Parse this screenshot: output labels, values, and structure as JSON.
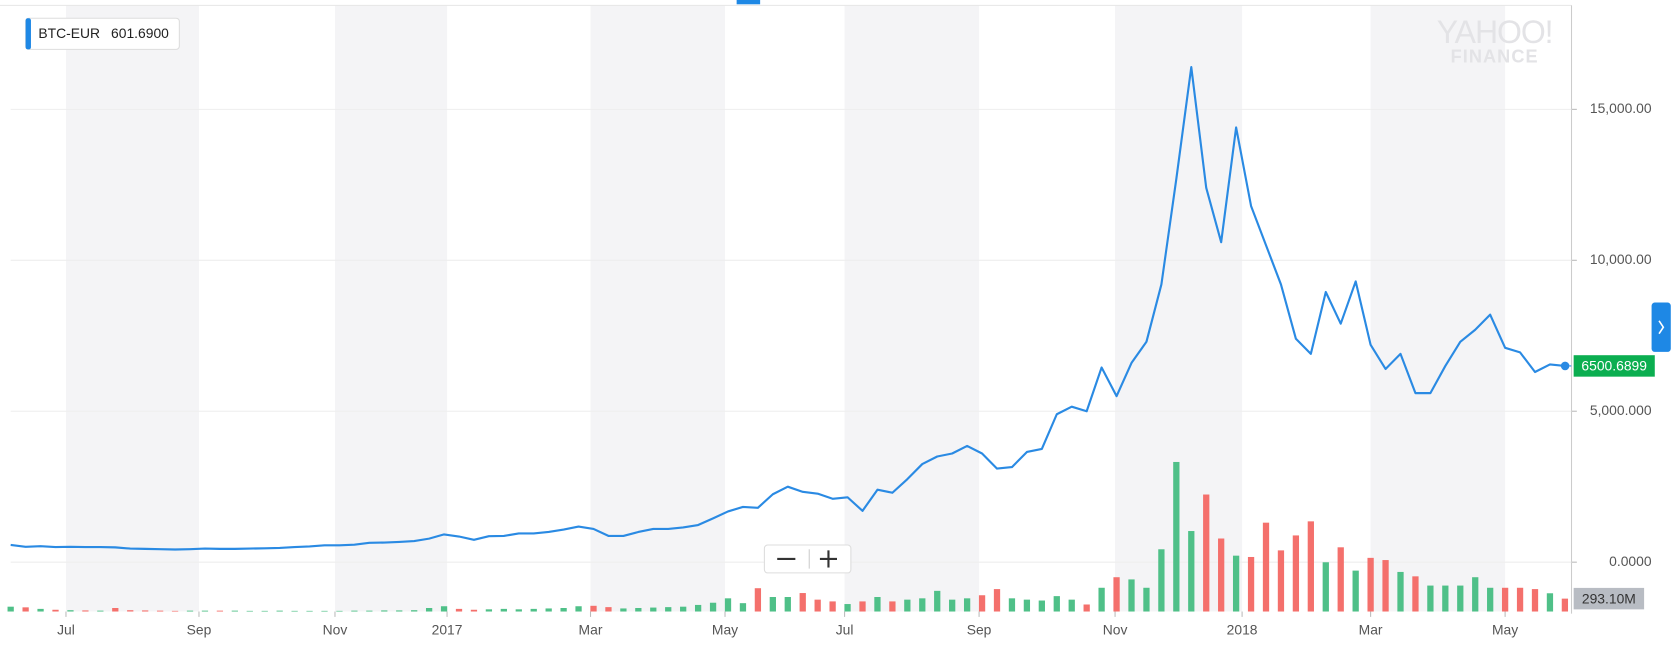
{
  "chart_data": {
    "type": "line",
    "watermark": [
      "YAHOO!",
      "FINANCE"
    ],
    "series": [
      {
        "name": "BTC-EUR",
        "color": "#2a8ae3",
        "values": [
          570,
          510,
          530,
          500,
          510,
          500,
          500,
          490,
          450,
          440,
          430,
          420,
          430,
          450,
          440,
          440,
          450,
          460,
          470,
          500,
          520,
          560,
          560,
          580,
          640,
          650,
          670,
          700,
          780,
          920,
          850,
          740,
          860,
          870,
          950,
          950,
          1000,
          1080,
          1180,
          1100,
          870,
          870,
          1000,
          1100,
          1100,
          1150,
          1230,
          1450,
          1680,
          1830,
          1800,
          2250,
          2500,
          2330,
          2270,
          2100,
          2150,
          1700,
          2400,
          2300,
          2750,
          3250,
          3500,
          3600,
          3850,
          3600,
          3100,
          3150,
          3650,
          3750,
          4900,
          5150,
          5000,
          6450,
          5500,
          6600,
          7300,
          9200,
          12700,
          16400,
          12400,
          10600,
          14400,
          11800,
          10500,
          9200,
          7400,
          6900,
          8950,
          7900,
          9300,
          7200,
          6400,
          6900,
          5600,
          5600,
          6500,
          7300,
          7700,
          8200,
          7100,
          6950,
          6300,
          6550,
          6500.6899
        ]
      }
    ],
    "hover_value": {
      "value": 601.69,
      "label": "601.6900"
    },
    "volume": {
      "up_color": "#4fc088",
      "down_color": "#f4706c",
      "values": [
        110,
        95,
        60,
        40,
        30,
        25,
        20,
        80,
        30,
        25,
        20,
        15,
        20,
        20,
        20,
        20,
        15,
        15,
        20,
        15,
        15,
        15,
        15,
        20,
        20,
        25,
        25,
        30,
        80,
        120,
        60,
        40,
        50,
        60,
        50,
        60,
        70,
        80,
        120,
        130,
        100,
        70,
        80,
        90,
        100,
        110,
        150,
        200,
        300,
        190,
        530,
        330,
        330,
        420,
        270,
        230,
        170,
        230,
        330,
        230,
        270,
        300,
        470,
        270,
        300,
        370,
        510,
        300,
        270,
        250,
        350,
        270,
        160,
        540,
        780,
        730,
        540,
        1415,
        3400,
        1830,
        2660,
        1660,
        1270,
        1240,
        2020,
        1390,
        1730,
        2050,
        1120,
        1460,
        930,
        1220,
        1170,
        900,
        800,
        590,
        590,
        590,
        780,
        540,
        540,
        540,
        510,
        415,
        293.1
      ],
      "last_label": "293.10M",
      "vlim": [
        0,
        6000
      ]
    },
    "xlim": [
      0,
      104.3
    ],
    "xticks": [
      {
        "value": 3.7,
        "label": "Jul"
      },
      {
        "value": 12.6,
        "label": "Sep"
      },
      {
        "value": 21.7,
        "label": "Nov"
      },
      {
        "value": 29.2,
        "label": "2017"
      },
      {
        "value": 38.8,
        "label": "Mar"
      },
      {
        "value": 47.8,
        "label": "May"
      },
      {
        "value": 55.8,
        "label": "Jul"
      },
      {
        "value": 64.8,
        "label": "Sep"
      },
      {
        "value": 73.9,
        "label": "Nov"
      },
      {
        "value": 82.4,
        "label": "2018"
      },
      {
        "value": 91.0,
        "label": "Mar"
      },
      {
        "value": 100.0,
        "label": "May"
      }
    ],
    "ylim": [
      -1635,
      18445
    ],
    "yticks": [
      {
        "value": 0,
        "label": "0.0000"
      },
      {
        "value": 5000,
        "label": "5,000.000"
      },
      {
        "value": 10000,
        "label": "10,000.00"
      },
      {
        "value": 15000,
        "label": "15,000.00"
      }
    ],
    "grid": true
  }
}
